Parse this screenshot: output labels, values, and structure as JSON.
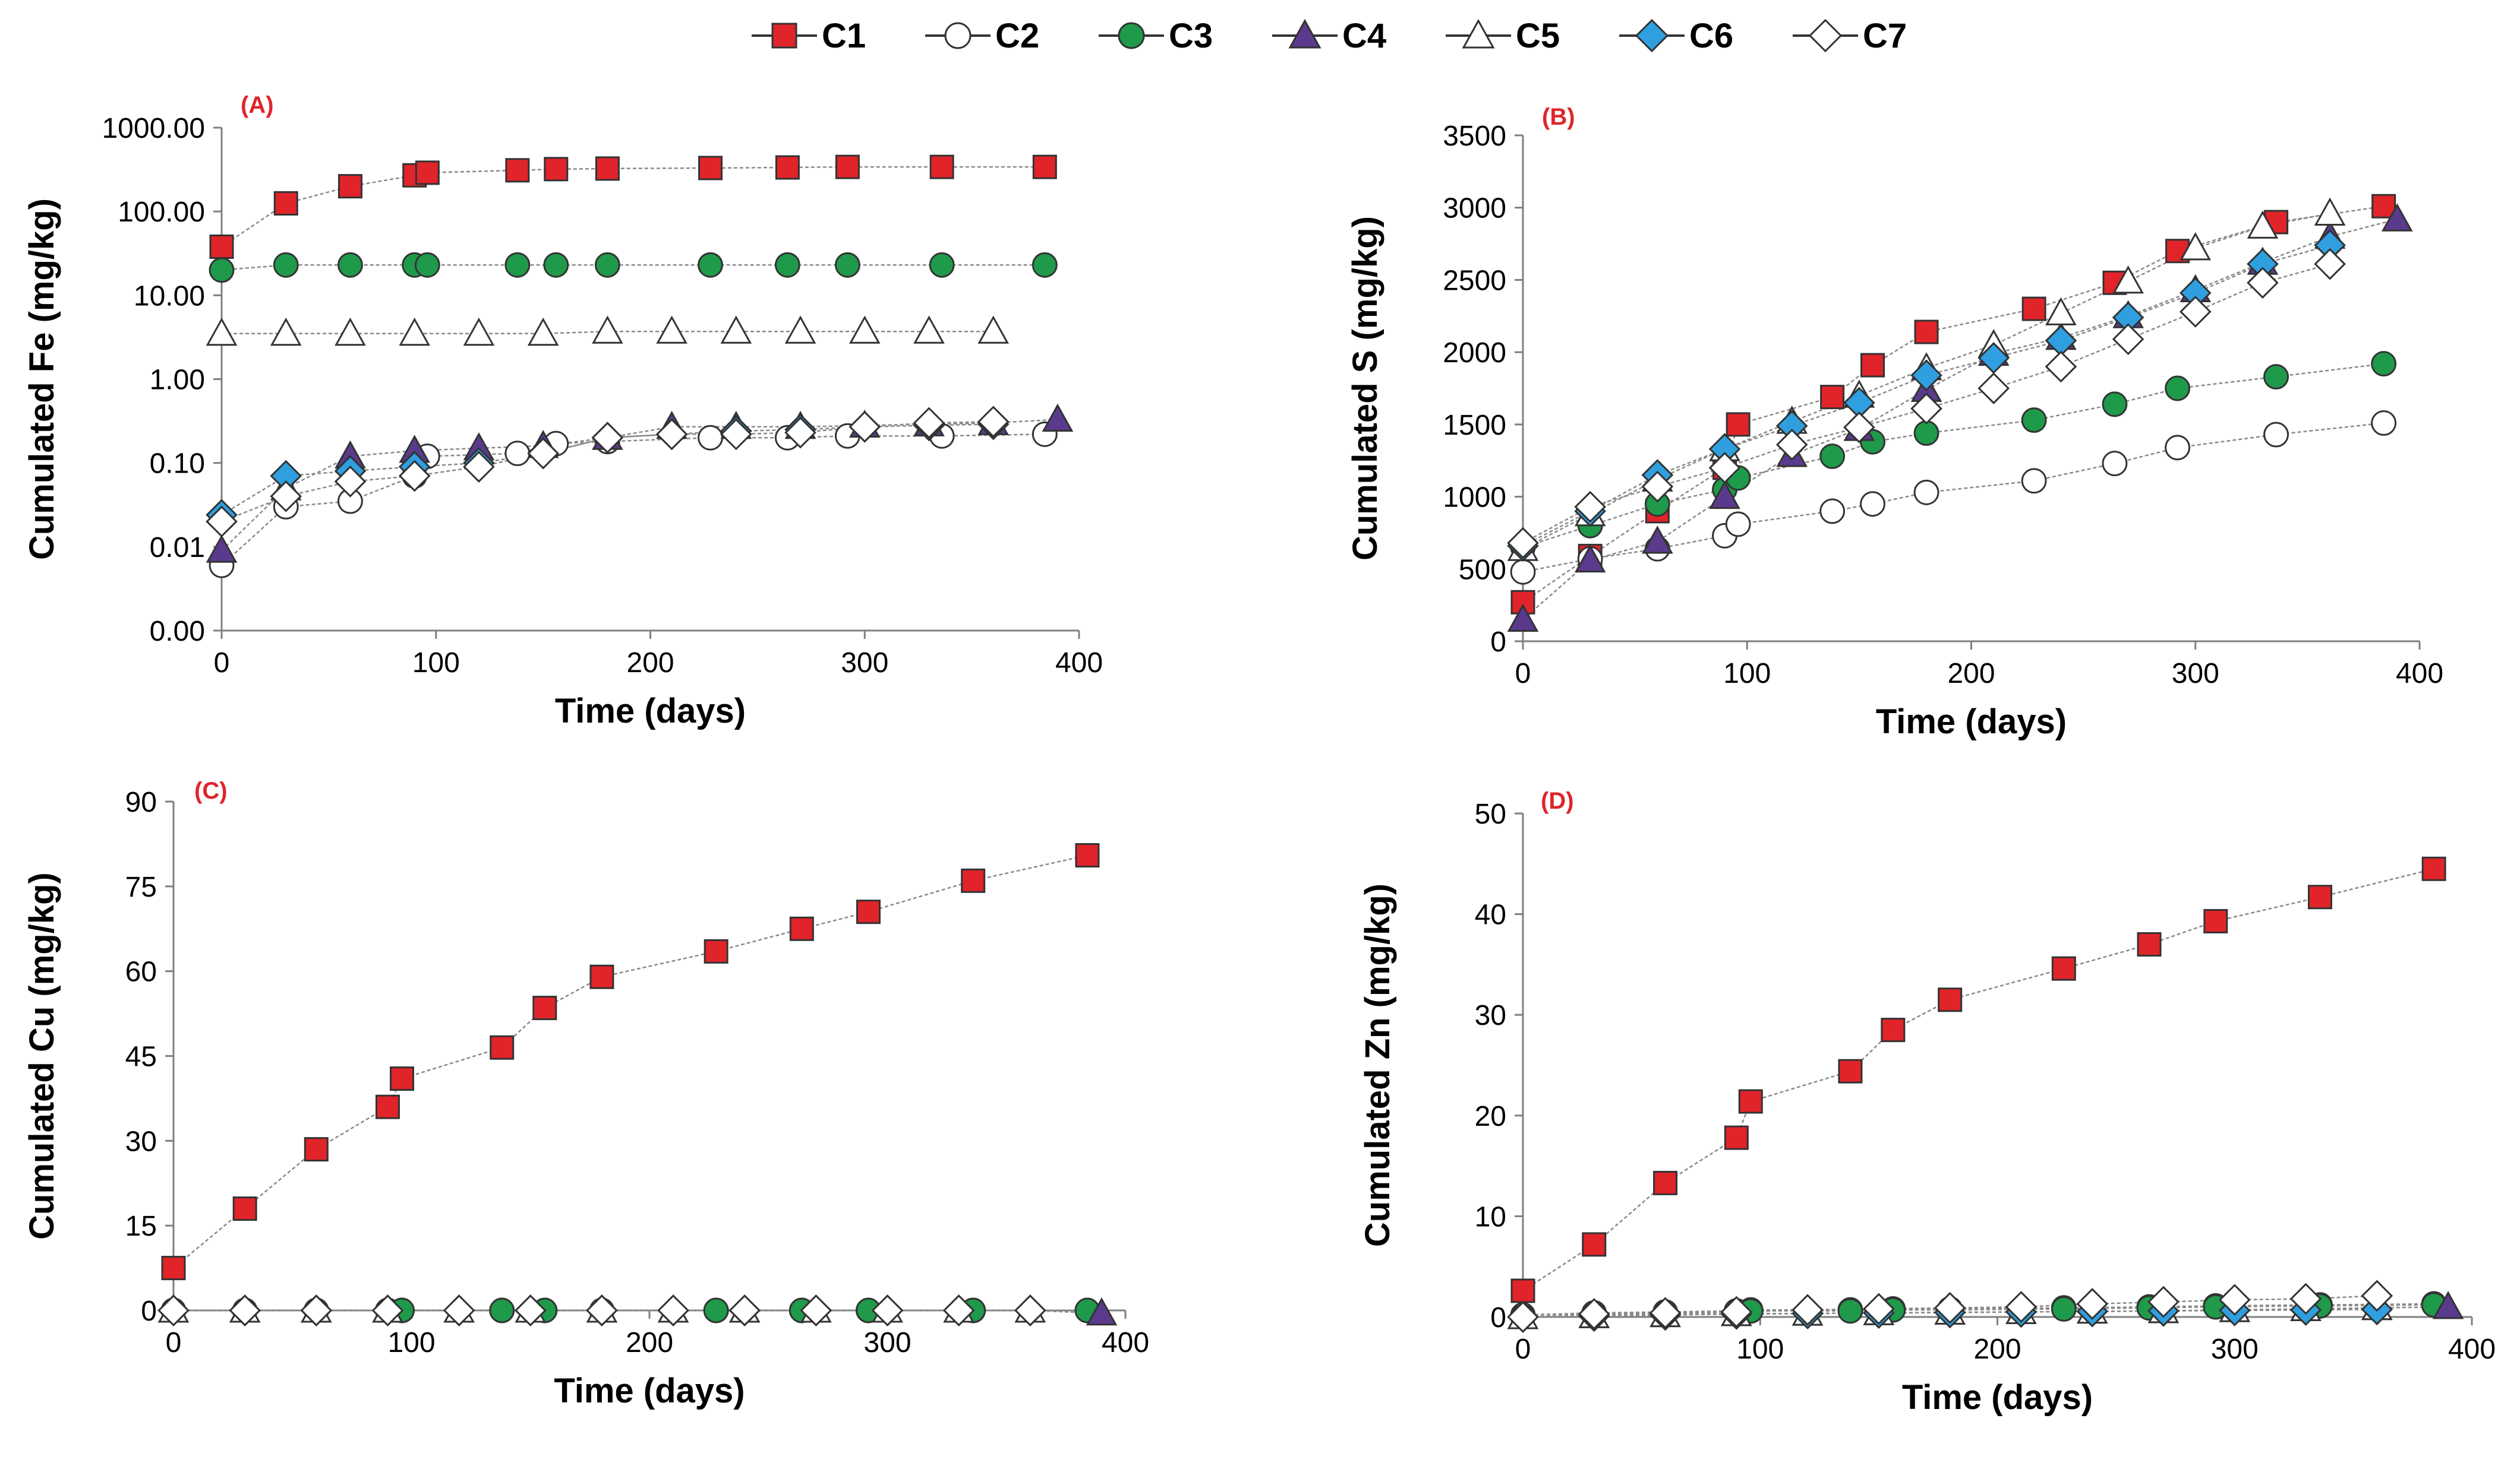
{
  "legend": [
    {
      "name": "C1",
      "marker": "square",
      "fill": "#e0242a"
    },
    {
      "name": "C2",
      "marker": "circle",
      "fill": "#ffffff"
    },
    {
      "name": "C3",
      "marker": "circle",
      "fill": "#1e9a4a"
    },
    {
      "name": "C4",
      "marker": "triangle",
      "fill": "#5a3a8c"
    },
    {
      "name": "C5",
      "marker": "triangle",
      "fill": "#ffffff"
    },
    {
      "name": "C6",
      "marker": "diamond",
      "fill": "#2f9fe0"
    },
    {
      "name": "C7",
      "marker": "diamond",
      "fill": "#ffffff"
    }
  ],
  "chart_data": [
    {
      "panel": "(A)",
      "type": "scatter",
      "yscale": "log",
      "xlabel": "Time (days)",
      "ylabel": "Cumulated Fe (mg/kg)",
      "xlim": [
        0,
        400
      ],
      "xticks": [
        0,
        100,
        200,
        300,
        400
      ],
      "ylim": [
        0.001,
        1000
      ],
      "yticks": [
        0.001,
        0.01,
        0.1,
        1,
        10,
        100,
        1000
      ],
      "ytick_labels": [
        "0.00",
        "0.01",
        "0.10",
        "1.00",
        "10.00",
        "100.00",
        "1000.00"
      ],
      "series": [
        {
          "name": "C1",
          "x": [
            0,
            30,
            60,
            90,
            96,
            138,
            156,
            180,
            228,
            264,
            292,
            336,
            384
          ],
          "y": [
            38,
            125,
            200,
            270,
            290,
            310,
            320,
            325,
            330,
            335,
            340,
            340,
            340
          ]
        },
        {
          "name": "C2",
          "x": [
            0,
            30,
            60,
            90,
            96,
            138,
            156,
            180,
            228,
            264,
            292,
            336,
            384
          ],
          "y": [
            0.006,
            0.03,
            0.035,
            0.07,
            0.12,
            0.13,
            0.17,
            0.18,
            0.2,
            0.2,
            0.21,
            0.21,
            0.22
          ]
        },
        {
          "name": "C3",
          "x": [
            0,
            30,
            60,
            90,
            96,
            138,
            156,
            180,
            228,
            264,
            292,
            336,
            384
          ],
          "y": [
            20,
            23,
            23,
            23,
            23,
            23,
            23,
            23,
            23,
            23,
            23,
            23,
            23
          ]
        },
        {
          "name": "C4",
          "x": [
            0,
            30,
            60,
            90,
            120,
            150,
            180,
            210,
            240,
            270,
            300,
            330,
            360,
            390
          ],
          "y": [
            0.009,
            0.05,
            0.12,
            0.14,
            0.15,
            0.16,
            0.2,
            0.27,
            0.27,
            0.27,
            0.28,
            0.29,
            0.3,
            0.33
          ]
        },
        {
          "name": "C5",
          "x": [
            0,
            30,
            60,
            90,
            120,
            150,
            180,
            210,
            240,
            270,
            300,
            330,
            360
          ],
          "y": [
            3.5,
            3.5,
            3.5,
            3.5,
            3.5,
            3.5,
            3.7,
            3.7,
            3.7,
            3.7,
            3.7,
            3.7,
            3.7
          ]
        },
        {
          "name": "C6",
          "x": [
            0,
            30,
            60,
            90,
            120,
            150,
            180,
            210,
            240,
            270,
            300,
            330,
            360
          ],
          "y": [
            0.024,
            0.07,
            0.08,
            0.09,
            0.1,
            0.13,
            0.2,
            0.22,
            0.24,
            0.25,
            0.27,
            0.28,
            0.29
          ]
        },
        {
          "name": "C7",
          "x": [
            0,
            30,
            60,
            90,
            120,
            150,
            180,
            210,
            240,
            270,
            300,
            330,
            360
          ],
          "y": [
            0.02,
            0.04,
            0.06,
            0.07,
            0.09,
            0.13,
            0.2,
            0.22,
            0.22,
            0.23,
            0.27,
            0.3,
            0.31
          ]
        }
      ]
    },
    {
      "panel": "(B)",
      "type": "scatter",
      "yscale": "linear",
      "xlabel": "Time (days)",
      "ylabel": "Cumulated S (mg/kg)",
      "xlim": [
        0,
        400
      ],
      "xticks": [
        0,
        100,
        200,
        300,
        400
      ],
      "ylim": [
        0,
        3500
      ],
      "yticks": [
        0,
        500,
        1000,
        1500,
        2000,
        2500,
        3000,
        3500
      ],
      "series": [
        {
          "name": "C1",
          "x": [
            0,
            30,
            60,
            90,
            96,
            138,
            156,
            180,
            228,
            264,
            292,
            336,
            384
          ],
          "y": [
            270,
            590,
            900,
            1200,
            1500,
            1690,
            1910,
            2140,
            2300,
            2480,
            2700,
            2900,
            3010
          ]
        },
        {
          "name": "C2",
          "x": [
            0,
            30,
            60,
            90,
            96,
            138,
            156,
            180,
            228,
            264,
            292,
            336,
            384
          ],
          "y": [
            480,
            570,
            640,
            730,
            810,
            900,
            950,
            1030,
            1110,
            1230,
            1340,
            1430,
            1510
          ]
        },
        {
          "name": "C3",
          "x": [
            0,
            30,
            60,
            90,
            96,
            138,
            156,
            180,
            228,
            264,
            292,
            336,
            384
          ],
          "y": [
            650,
            800,
            950,
            1050,
            1130,
            1280,
            1380,
            1440,
            1530,
            1640,
            1750,
            1830,
            1920
          ]
        },
        {
          "name": "C4",
          "x": [
            0,
            30,
            60,
            90,
            120,
            150,
            180,
            210,
            240,
            270,
            300,
            330,
            360,
            390
          ],
          "y": [
            150,
            560,
            690,
            1000,
            1290,
            1470,
            1740,
            1990,
            2100,
            2250,
            2430,
            2620,
            2800,
            2920
          ]
        },
        {
          "name": "C5",
          "x": [
            0,
            30,
            60,
            90,
            120,
            150,
            180,
            210,
            240,
            270,
            300,
            330,
            360
          ],
          "y": [
            640,
            880,
            1120,
            1330,
            1520,
            1700,
            1890,
            2050,
            2270,
            2490,
            2720,
            2870,
            2960
          ]
        },
        {
          "name": "C6",
          "x": [
            0,
            30,
            60,
            90,
            120,
            150,
            180,
            210,
            240,
            270,
            300,
            330,
            360
          ],
          "y": [
            660,
            900,
            1150,
            1330,
            1490,
            1650,
            1840,
            1960,
            2080,
            2240,
            2410,
            2610,
            2740
          ]
        },
        {
          "name": "C7",
          "x": [
            0,
            30,
            60,
            90,
            120,
            150,
            180,
            210,
            240,
            270,
            300,
            330,
            360
          ],
          "y": [
            680,
            930,
            1070,
            1200,
            1360,
            1480,
            1610,
            1750,
            1900,
            2090,
            2280,
            2480,
            2610
          ]
        }
      ]
    },
    {
      "panel": "(C)",
      "type": "scatter",
      "yscale": "linear",
      "xlabel": "Time (days)",
      "ylabel": "Cumulated Cu (mg/kg)",
      "xlim": [
        0,
        400
      ],
      "xticks": [
        0,
        100,
        200,
        300,
        400
      ],
      "ylim": [
        0,
        90
      ],
      "yticks": [
        0,
        15,
        30,
        45,
        60,
        75,
        90
      ],
      "series": [
        {
          "name": "C1",
          "x": [
            0,
            30,
            60,
            90,
            96,
            138,
            156,
            180,
            228,
            264,
            292,
            336,
            384
          ],
          "y": [
            7.5,
            18,
            28.5,
            36,
            41,
            46.5,
            53.5,
            59,
            63.5,
            67.5,
            70.5,
            76,
            80.5
          ]
        },
        {
          "name": "C2",
          "x": [
            0,
            30,
            60,
            90,
            96,
            138,
            156,
            180,
            228,
            264,
            292,
            336,
            384
          ],
          "y": [
            0,
            0,
            0,
            0,
            0,
            0,
            0,
            0,
            0,
            0,
            0,
            0,
            0
          ]
        },
        {
          "name": "C3",
          "x": [
            0,
            30,
            60,
            90,
            96,
            138,
            156,
            180,
            228,
            264,
            292,
            336,
            384
          ],
          "y": [
            0,
            0,
            0,
            0,
            0,
            0,
            0,
            0,
            0,
            0,
            0,
            0,
            0
          ]
        },
        {
          "name": "C4",
          "x": [
            0,
            30,
            60,
            90,
            120,
            150,
            180,
            210,
            240,
            270,
            300,
            330,
            360,
            390
          ],
          "y": [
            0,
            0,
            0,
            0,
            0,
            0,
            0,
            0,
            0,
            0,
            0,
            0,
            0,
            -0.5
          ]
        },
        {
          "name": "C5",
          "x": [
            0,
            30,
            60,
            90,
            120,
            150,
            180,
            210,
            240,
            270,
            300,
            330,
            360
          ],
          "y": [
            0,
            0,
            0,
            0,
            0,
            0,
            0,
            0,
            0,
            0,
            0,
            0,
            0
          ]
        },
        {
          "name": "C6",
          "x": [
            0,
            30,
            60,
            90,
            120,
            150,
            180,
            210,
            240,
            270,
            300,
            330,
            360
          ],
          "y": [
            0,
            0,
            0,
            0,
            0,
            0,
            0,
            0,
            0,
            0,
            0,
            0,
            0
          ]
        },
        {
          "name": "C7",
          "x": [
            0,
            30,
            60,
            90,
            120,
            150,
            180,
            210,
            240,
            270,
            300,
            330,
            360
          ],
          "y": [
            0,
            0,
            0,
            0,
            0,
            0,
            0,
            0,
            0,
            0,
            0,
            0,
            0
          ]
        }
      ]
    },
    {
      "panel": "(D)",
      "type": "scatter",
      "yscale": "linear",
      "xlabel": "Time (days)",
      "ylabel": "Cumulated Zn (mg/kg)",
      "xlim": [
        0,
        400
      ],
      "xticks": [
        0,
        100,
        200,
        300,
        400
      ],
      "ylim": [
        0,
        50
      ],
      "yticks": [
        0,
        10,
        20,
        30,
        40,
        50
      ],
      "series": [
        {
          "name": "C1",
          "x": [
            0,
            30,
            60,
            90,
            96,
            138,
            156,
            180,
            228,
            264,
            292,
            336,
            384
          ],
          "y": [
            2.6,
            7.2,
            13.3,
            17.8,
            21.4,
            24.4,
            28.5,
            31.5,
            34.6,
            37,
            39.3,
            41.7,
            44.5
          ]
        },
        {
          "name": "C2",
          "x": [
            0,
            30,
            60,
            90,
            96,
            138,
            156,
            180,
            228,
            264,
            292,
            336,
            384
          ],
          "y": [
            0.2,
            0.4,
            0.5,
            0.6,
            0.7,
            0.7,
            0.8,
            0.8,
            0.9,
            1,
            1.1,
            1.2,
            1.3
          ]
        },
        {
          "name": "C3",
          "x": [
            0,
            30,
            60,
            90,
            96,
            138,
            156,
            180,
            228,
            264,
            292,
            336,
            384
          ],
          "y": [
            0,
            0.2,
            0.3,
            0.5,
            0.6,
            0.6,
            0.7,
            0.7,
            0.8,
            0.9,
            1,
            1.1,
            1.2
          ]
        },
        {
          "name": "C4",
          "x": [
            0,
            30,
            60,
            90,
            120,
            150,
            180,
            210,
            240,
            270,
            300,
            330,
            360,
            390
          ],
          "y": [
            0,
            0.1,
            0.2,
            0.3,
            0.35,
            0.4,
            0.45,
            0.5,
            0.55,
            0.6,
            0.7,
            0.8,
            0.9,
            1
          ]
        },
        {
          "name": "C5",
          "x": [
            0,
            30,
            60,
            90,
            120,
            150,
            180,
            210,
            240,
            270,
            300,
            330,
            360
          ],
          "y": [
            0,
            0.1,
            0.2,
            0.3,
            0.35,
            0.4,
            0.45,
            0.5,
            0.55,
            0.6,
            0.7,
            0.8,
            0.9
          ]
        },
        {
          "name": "C6",
          "x": [
            0,
            30,
            60,
            90,
            120,
            150,
            180,
            210,
            240,
            270,
            300,
            330,
            360
          ],
          "y": [
            0,
            0.1,
            0.2,
            0.3,
            0.35,
            0.4,
            0.45,
            0.5,
            0.55,
            0.6,
            0.65,
            0.7,
            0.75
          ]
        },
        {
          "name": "C7",
          "x": [
            0,
            30,
            60,
            90,
            120,
            150,
            180,
            210,
            240,
            270,
            300,
            330,
            360
          ],
          "y": [
            0,
            0.3,
            0.4,
            0.5,
            0.7,
            0.8,
            0.9,
            1,
            1.3,
            1.5,
            1.7,
            1.8,
            2.1
          ]
        }
      ]
    }
  ]
}
